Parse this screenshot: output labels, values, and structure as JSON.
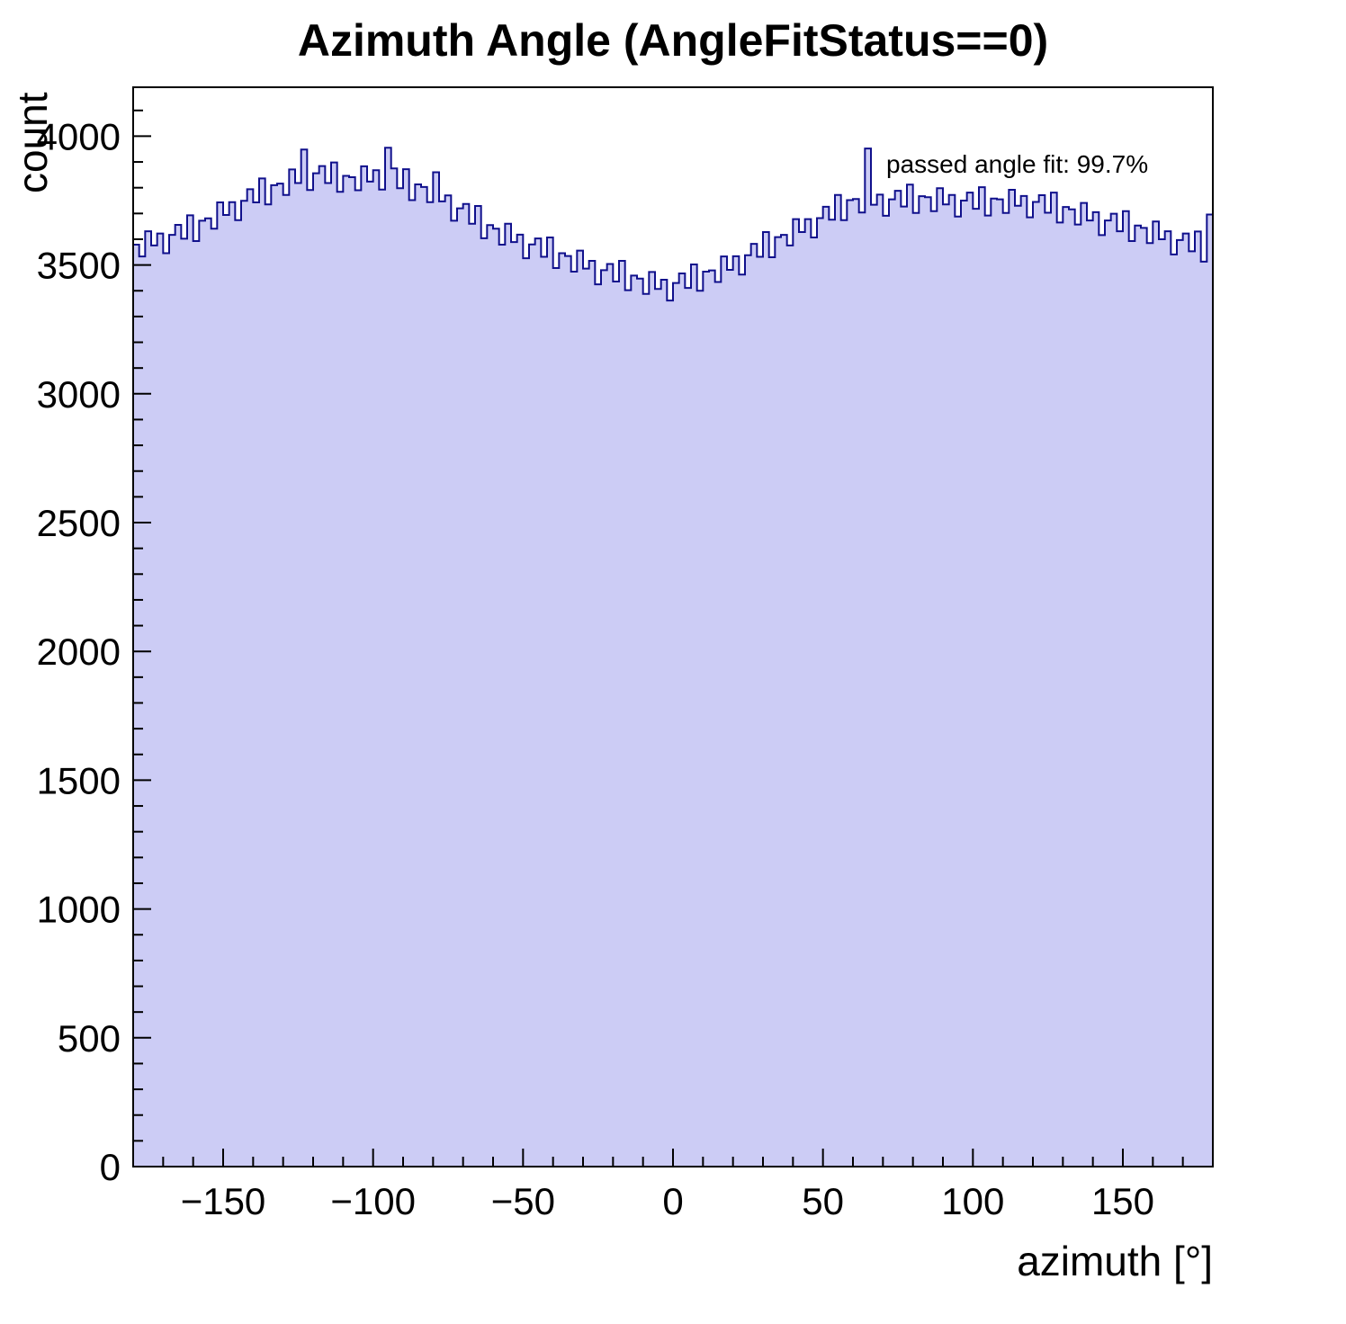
{
  "window": {
    "background": "#ffffff"
  },
  "colors": {
    "hist_fill": "#ccccf5",
    "hist_line": "#10108c",
    "axis_line": "#000000",
    "text": "#000000"
  },
  "chart_data": {
    "type": "bar",
    "style": "filled-step-histogram",
    "title": "Azimuth Angle (AngleFitStatus==0)",
    "xlabel": "azimuth [°]",
    "ylabel": "count",
    "annotation": "passed angle fit: 99.7%",
    "annotation_position": "top-right-inside",
    "grid": false,
    "xlim": [
      -180,
      180
    ],
    "ylim": [
      0,
      4190
    ],
    "xticks": [
      -150,
      -100,
      -50,
      0,
      50,
      100,
      150
    ],
    "yticks": [
      0,
      500,
      1000,
      1500,
      2000,
      2500,
      3000,
      3500,
      4000
    ],
    "x_minor_step": 10,
    "y_minor_step": 100,
    "bin_start": -180,
    "bin_width": 2,
    "values": [
      3579,
      3533,
      3631,
      3576,
      3622,
      3546,
      3617,
      3656,
      3602,
      3693,
      3593,
      3672,
      3681,
      3641,
      3743,
      3694,
      3744,
      3674,
      3749,
      3794,
      3743,
      3836,
      3735,
      3810,
      3816,
      3772,
      3871,
      3818,
      3948,
      3791,
      3856,
      3884,
      3818,
      3898,
      3784,
      3846,
      3841,
      3790,
      3883,
      3824,
      3868,
      3793,
      3955,
      3875,
      3798,
      3872,
      3752,
      3813,
      3803,
      3744,
      3860,
      3747,
      3770,
      3672,
      3720,
      3737,
      3660,
      3729,
      3604,
      3655,
      3641,
      3579,
      3660,
      3589,
      3618,
      3526,
      3580,
      3603,
      3532,
      3607,
      3488,
      3546,
      3535,
      3474,
      3556,
      3486,
      3516,
      3425,
      3480,
      3504,
      3436,
      3516,
      3402,
      3459,
      3447,
      3388,
      3473,
      3407,
      3443,
      3362,
      3430,
      3467,
      3411,
      3502,
      3400,
      3474,
      3479,
      3434,
      3533,
      3481,
      3534,
      3463,
      3538,
      3582,
      3532,
      3628,
      3530,
      3608,
      3617,
      3576,
      3678,
      3628,
      3678,
      3607,
      3682,
      3726,
      3676,
      3772,
      3674,
      3752,
      3756,
      3704,
      3952,
      3734,
      3773,
      3691,
      3755,
      3788,
      3727,
      3812,
      3702,
      3767,
      3763,
      3709,
      3798,
      3735,
      3772,
      3688,
      3750,
      3781,
      3718,
      3802,
      3692,
      3758,
      3755,
      3702,
      3792,
      3730,
      3768,
      3685,
      3745,
      3771,
      3703,
      3781,
      3665,
      3725,
      3716,
      3657,
      3741,
      3673,
      3705,
      3616,
      3673,
      3699,
      3631,
      3709,
      3593,
      3653,
      3644,
      3585,
      3669,
      3600,
      3631,
      3541,
      3597,
      3622,
      3553,
      3630,
      3513,
      3696
    ]
  }
}
